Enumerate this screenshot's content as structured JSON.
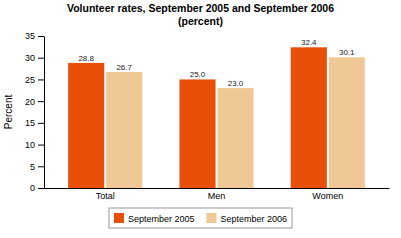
{
  "chart_data": {
    "type": "bar",
    "title": "Volunteer rates, September 2005 and September 2006",
    "subtitle": "(percent)",
    "ylabel": "Percent",
    "categories": [
      "Total",
      "Men",
      "Women"
    ],
    "series": [
      {
        "name": "September 2005",
        "color": "#E8500A",
        "values": [
          28.8,
          25.0,
          32.4
        ],
        "value_labels": [
          "28.8",
          "25.0",
          "32.4"
        ]
      },
      {
        "name": "September 2006",
        "color": "#F0C896",
        "values": [
          26.7,
          23.0,
          30.1
        ],
        "value_labels": [
          "26.7",
          "23.0",
          "30.1"
        ]
      }
    ],
    "ylim": [
      0,
      35
    ],
    "yticks": [
      0,
      5,
      10,
      15,
      20,
      25,
      30,
      35
    ],
    "data_labels": true,
    "grid": false,
    "legend": "bottom"
  }
}
